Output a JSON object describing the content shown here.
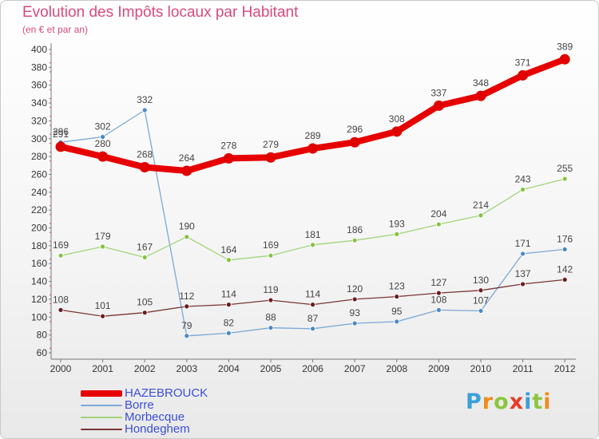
{
  "title": "Evolution des Impôts locaux par Habitant",
  "subtitle": "(en € et par an)",
  "logo": {
    "text": "Proxiti",
    "letters": [
      "P",
      "r",
      "o",
      "x",
      "i",
      "t",
      "i"
    ],
    "letter_colors": [
      "#3aa0d8",
      "#f08c1e",
      "#8cc63f",
      "#e63c28",
      "#3aa0d8",
      "#8cc63f",
      "#f08c1e"
    ]
  },
  "chart_data": {
    "type": "line",
    "title": "Evolution des Impôts locaux par Habitant",
    "subtitle": "(en € et par an)",
    "x": [
      "2000",
      "2001",
      "2002",
      "2003",
      "2004",
      "2005",
      "2006",
      "2007",
      "2008",
      "2009",
      "2010",
      "2011",
      "2012"
    ],
    "ylim": [
      60,
      400
    ],
    "yticks": [
      60,
      80,
      100,
      120,
      140,
      160,
      180,
      200,
      220,
      240,
      260,
      280,
      300,
      320,
      340,
      360,
      380,
      400
    ],
    "grid": false,
    "legend_position": "bottom-left",
    "series": [
      {
        "name": "Borre",
        "color": "#4a8ac8",
        "line_color": "#7aa8d6",
        "width": 1.3,
        "r": 3,
        "values": [
          296,
          302,
          332,
          79,
          82,
          88,
          87,
          93,
          95,
          108,
          107,
          171,
          176
        ]
      },
      {
        "name": "Morbecque",
        "color": "#86c240",
        "line_color": "#a3d47a",
        "width": 1.3,
        "r": 3,
        "values": [
          169,
          179,
          167,
          190,
          164,
          169,
          181,
          186,
          193,
          204,
          214,
          243,
          255
        ]
      },
      {
        "name": "Hondeghem",
        "color": "#6b1c1c",
        "line_color": "#7a3535",
        "width": 1.3,
        "r": 3,
        "values": [
          108,
          101,
          105,
          112,
          114,
          119,
          114,
          120,
          123,
          127,
          130,
          137,
          142
        ]
      },
      {
        "name": "HAZEBROUCK",
        "color": "#e00000",
        "line_color": "#e60000",
        "width": 8,
        "r": 6.5,
        "values": [
          291,
          280,
          268,
          264,
          278,
          279,
          289,
          296,
          308,
          337,
          348,
          371,
          389
        ]
      }
    ],
    "legend": [
      "HAZEBROUCK",
      "Borre",
      "Morbecque",
      "Hondeghem"
    ]
  }
}
